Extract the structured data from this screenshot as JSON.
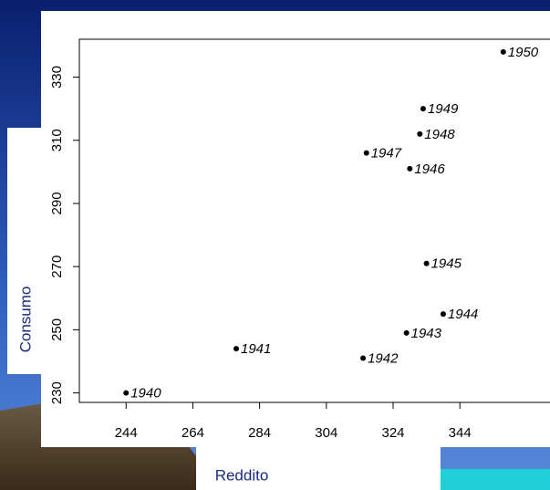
{
  "chart_data": {
    "type": "scatter",
    "x_label": "Reddito",
    "y_label": "Consumo",
    "x": [
      244,
      277,
      315,
      328,
      339,
      334,
      329,
      316,
      332,
      333,
      357
    ],
    "values": [
      230,
      244,
      241,
      249,
      255,
      271,
      301,
      306,
      312,
      320,
      338
    ],
    "point_labels": [
      "1940",
      "1941",
      "1942",
      "1943",
      "1944",
      "1945",
      "1946",
      "1947",
      "1948",
      "1949",
      "1950"
    ],
    "color": "#000000",
    "xlim": [
      230,
      371
    ],
    "ylim": [
      227,
      342
    ],
    "xticks": [
      244,
      264,
      284,
      304,
      324,
      344
    ],
    "yticks": [
      230,
      250,
      270,
      290,
      310,
      330
    ]
  }
}
